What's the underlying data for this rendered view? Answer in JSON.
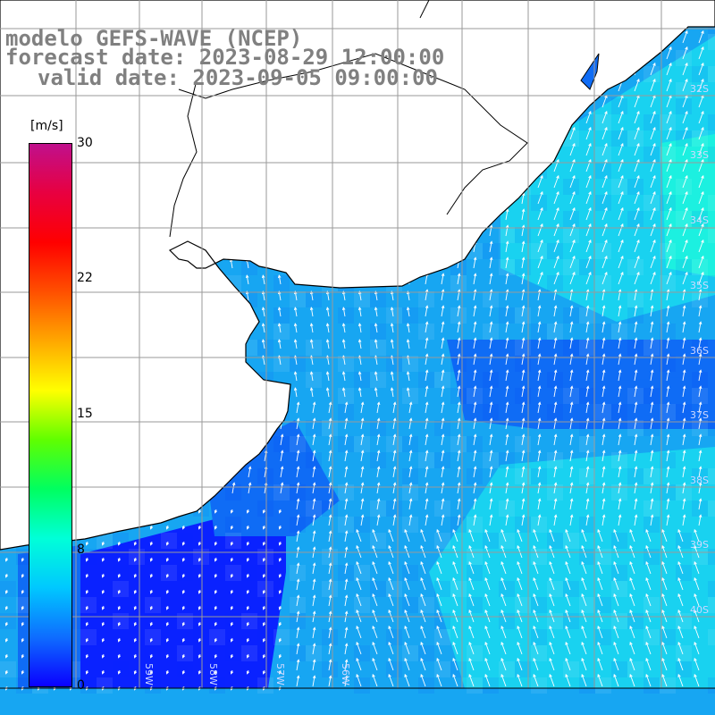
{
  "title": {
    "line1": "modelo GEFS-WAVE (NCEP)",
    "line2": "forecast date: 2023-08-29 12:00:00",
    "line3": "valid date: 2023-09-05 09:00:00"
  },
  "colorbar": {
    "unit": "[m/s]",
    "ticks": [
      "30",
      "22",
      "15",
      "8",
      "0"
    ],
    "stops": [
      "#0a00ff",
      "#0e6dff",
      "#00c8ff",
      "#00ffd8",
      "#00ff60",
      "#60ff00",
      "#ffff00",
      "#ffa800",
      "#ff5000",
      "#ff0000",
      "#e80040",
      "#c0108c"
    ]
  },
  "axes": {
    "lon_labels": [
      "59W",
      "58W",
      "57W",
      "56W"
    ],
    "lat_labels": [
      "32S",
      "33S",
      "34S",
      "35S",
      "36S",
      "37S",
      "38S",
      "39S",
      "40S"
    ]
  },
  "map": {
    "ocean_colors": {
      "deep": "#0a22ff",
      "mid": "#0f6cf5",
      "light": "#17a6f2",
      "cyan": "#19d2f0",
      "teal": "#1cf0e0"
    },
    "grid_color": "#9a9a9a",
    "land_color": "#ffffff",
    "coast_color": "#000000",
    "arrow_color": "#ffffff"
  }
}
